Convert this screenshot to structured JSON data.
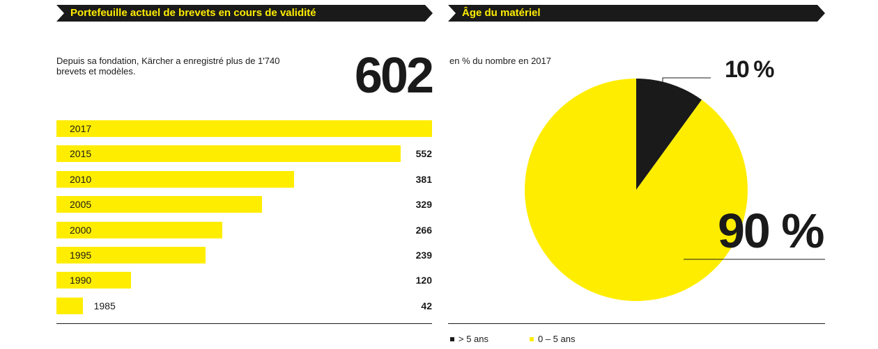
{
  "left_panel": {
    "title": "Portefeuille actuel de brevets en cours de validité",
    "description": "Depuis sa fondation, Kärcher a enregistré plus de 1'740 brevets et modèles.",
    "highlight_value": "602"
  },
  "right_panel": {
    "title": "Âge du matériel",
    "description": "en % du nombre en 2017",
    "legend": [
      {
        "label": "> 5 ans",
        "color": "#1a1a1a"
      },
      {
        "label": "0 – 5 ans",
        "color": "#ffed00"
      }
    ],
    "slice_labels": [
      "10 %",
      "90 %"
    ]
  },
  "colors": {
    "accent": "#ffed00",
    "dark": "#1a1a1a"
  },
  "chart_data": [
    {
      "type": "bar",
      "orientation": "horizontal",
      "categories": [
        "2017",
        "2015",
        "2010",
        "2005",
        "2000",
        "1995",
        "1990",
        "1985"
      ],
      "values": [
        602,
        552,
        381,
        329,
        266,
        239,
        120,
        42
      ],
      "value_labels": [
        "",
        "552",
        "381",
        "329",
        "266",
        "239",
        "120",
        "42"
      ],
      "xlim": [
        0,
        602
      ],
      "grid": false
    },
    {
      "type": "pie",
      "categories": [
        "> 5 ans",
        "0 – 5 ans"
      ],
      "values": [
        10,
        90
      ],
      "unit": "%",
      "colors": [
        "#1a1a1a",
        "#ffed00"
      ],
      "legend_position": "bottom-left"
    }
  ]
}
